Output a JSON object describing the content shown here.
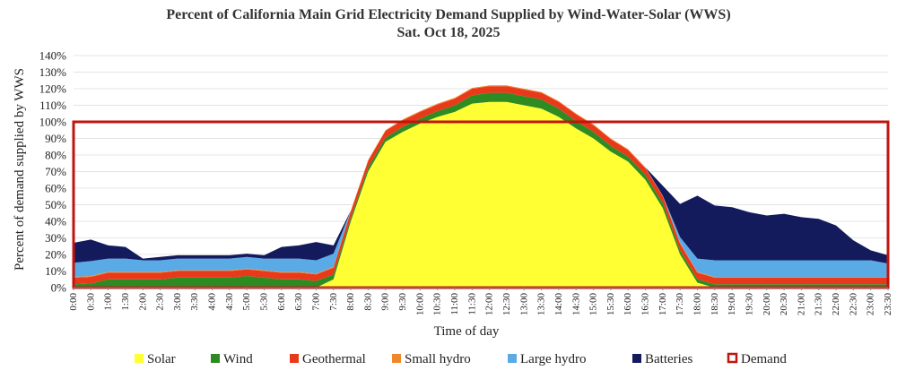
{
  "chart_data": {
    "type": "area",
    "title": "Percent of California Main Grid Electricity Demand Supplied by Wind-Water-Solar (WWS)",
    "subtitle": "Sat. Oct 18,  2025",
    "xlabel": "Time of day",
    "ylabel": "Percent of demand supplied by WWS",
    "ylim": [
      0,
      140
    ],
    "y_ticks": [
      "0%",
      "10%",
      "20%",
      "30%",
      "40%",
      "50%",
      "60%",
      "70%",
      "80%",
      "90%",
      "100%",
      "110%",
      "120%",
      "130%",
      "140%"
    ],
    "categories": [
      "0:00",
      "0:30",
      "1:00",
      "1:30",
      "2:00",
      "2:30",
      "3:00",
      "3:30",
      "4:00",
      "4:30",
      "5:00",
      "5:30",
      "6:00",
      "6:30",
      "7:00",
      "7:30",
      "8:00",
      "8:30",
      "9:00",
      "9:30",
      "10:00",
      "10:30",
      "11:00",
      "11:30",
      "12:00",
      "12:30",
      "13:00",
      "13:30",
      "14:00",
      "14:30",
      "15:00",
      "15:30",
      "16:00",
      "16:30",
      "17:00",
      "17:30",
      "18:00",
      "18:30",
      "19:00",
      "19:30",
      "20:00",
      "20:30",
      "21:00",
      "21:30",
      "22:00",
      "22:30",
      "23:00",
      "23:30"
    ],
    "series": [
      {
        "name": "Solar",
        "color": "#ffff33",
        "values": [
          0,
          0,
          0,
          0,
          0,
          0,
          0,
          0,
          0,
          0,
          0,
          0,
          0,
          0,
          0,
          5,
          40,
          70,
          88,
          94,
          99,
          103,
          106,
          111,
          112,
          112,
          110,
          108,
          103,
          96,
          90,
          82,
          76,
          65,
          48,
          20,
          3,
          0,
          0,
          0,
          0,
          0,
          0,
          0,
          0,
          0,
          0,
          0
        ]
      },
      {
        "name": "Wind",
        "color": "#2e8b22",
        "values": [
          2,
          2.5,
          5,
          5,
          5,
          5,
          6,
          6,
          6,
          6,
          7,
          6,
          5,
          5,
          4,
          3,
          2,
          2.5,
          2.5,
          3,
          3,
          3.5,
          4,
          5,
          5.5,
          5.5,
          5.5,
          5.5,
          5,
          4.5,
          4,
          3.5,
          3,
          3,
          3,
          2.5,
          2,
          2,
          2,
          2,
          2,
          2,
          2,
          2,
          2,
          2,
          2,
          2
        ]
      },
      {
        "name": "Geothermal",
        "color": "#e8391a",
        "values": [
          4,
          4,
          4,
          4,
          4,
          4,
          4,
          4,
          4,
          4,
          4,
          4,
          4,
          4,
          4,
          4,
          4,
          4,
          4,
          4,
          4,
          4,
          4,
          4,
          4,
          4,
          4,
          4,
          4,
          4,
          4,
          4,
          4,
          4,
          4,
          4,
          4,
          4,
          4,
          4,
          4,
          4,
          4,
          4,
          4,
          4,
          4,
          4
        ]
      },
      {
        "name": "Small hydro",
        "color": "#f0872c",
        "values": [
          0.5,
          0.5,
          0.5,
          0.5,
          0.5,
          0.5,
          0.5,
          0.5,
          0.5,
          0.5,
          0.5,
          0.5,
          0.5,
          0.5,
          0.5,
          0.5,
          0.5,
          0.5,
          0.5,
          0.5,
          0.5,
          0.5,
          0.5,
          0.5,
          0.5,
          0.5,
          0.5,
          0.5,
          0.5,
          0.5,
          0.5,
          0.5,
          0.5,
          0.5,
          0.5,
          0.5,
          0.5,
          0.5,
          0.5,
          0.5,
          0.5,
          0.5,
          0.5,
          0.5,
          0.5,
          0.5,
          0.5,
          0.5
        ]
      },
      {
        "name": "Large hydro",
        "color": "#5aaae6",
        "values": [
          8.5,
          9,
          8,
          8,
          7,
          7,
          7,
          7,
          7,
          7,
          7,
          7,
          8,
          8,
          8,
          8,
          0,
          0,
          0,
          0,
          0,
          0,
          0,
          0,
          0,
          0,
          0,
          0,
          0,
          0,
          0,
          0,
          0,
          0,
          0,
          3.5,
          8,
          10,
          10,
          10,
          10,
          10,
          10,
          10,
          10,
          10,
          10,
          8
        ]
      },
      {
        "name": "Batteries",
        "color": "#131b5c",
        "values": [
          12,
          13,
          8,
          7,
          1,
          2,
          2,
          2,
          2,
          2,
          2,
          2,
          7,
          8,
          11,
          5,
          0,
          0,
          0,
          0,
          0,
          0,
          0,
          0,
          0,
          0,
          0,
          0,
          0,
          0,
          0,
          0,
          0,
          0,
          6,
          20,
          38,
          33,
          32,
          29,
          27,
          28,
          26,
          25,
          21,
          12,
          6,
          5
        ]
      }
    ],
    "demand": {
      "name": "Demand",
      "color": "#c0150f",
      "value": 100
    },
    "legend_position": "bottom"
  }
}
